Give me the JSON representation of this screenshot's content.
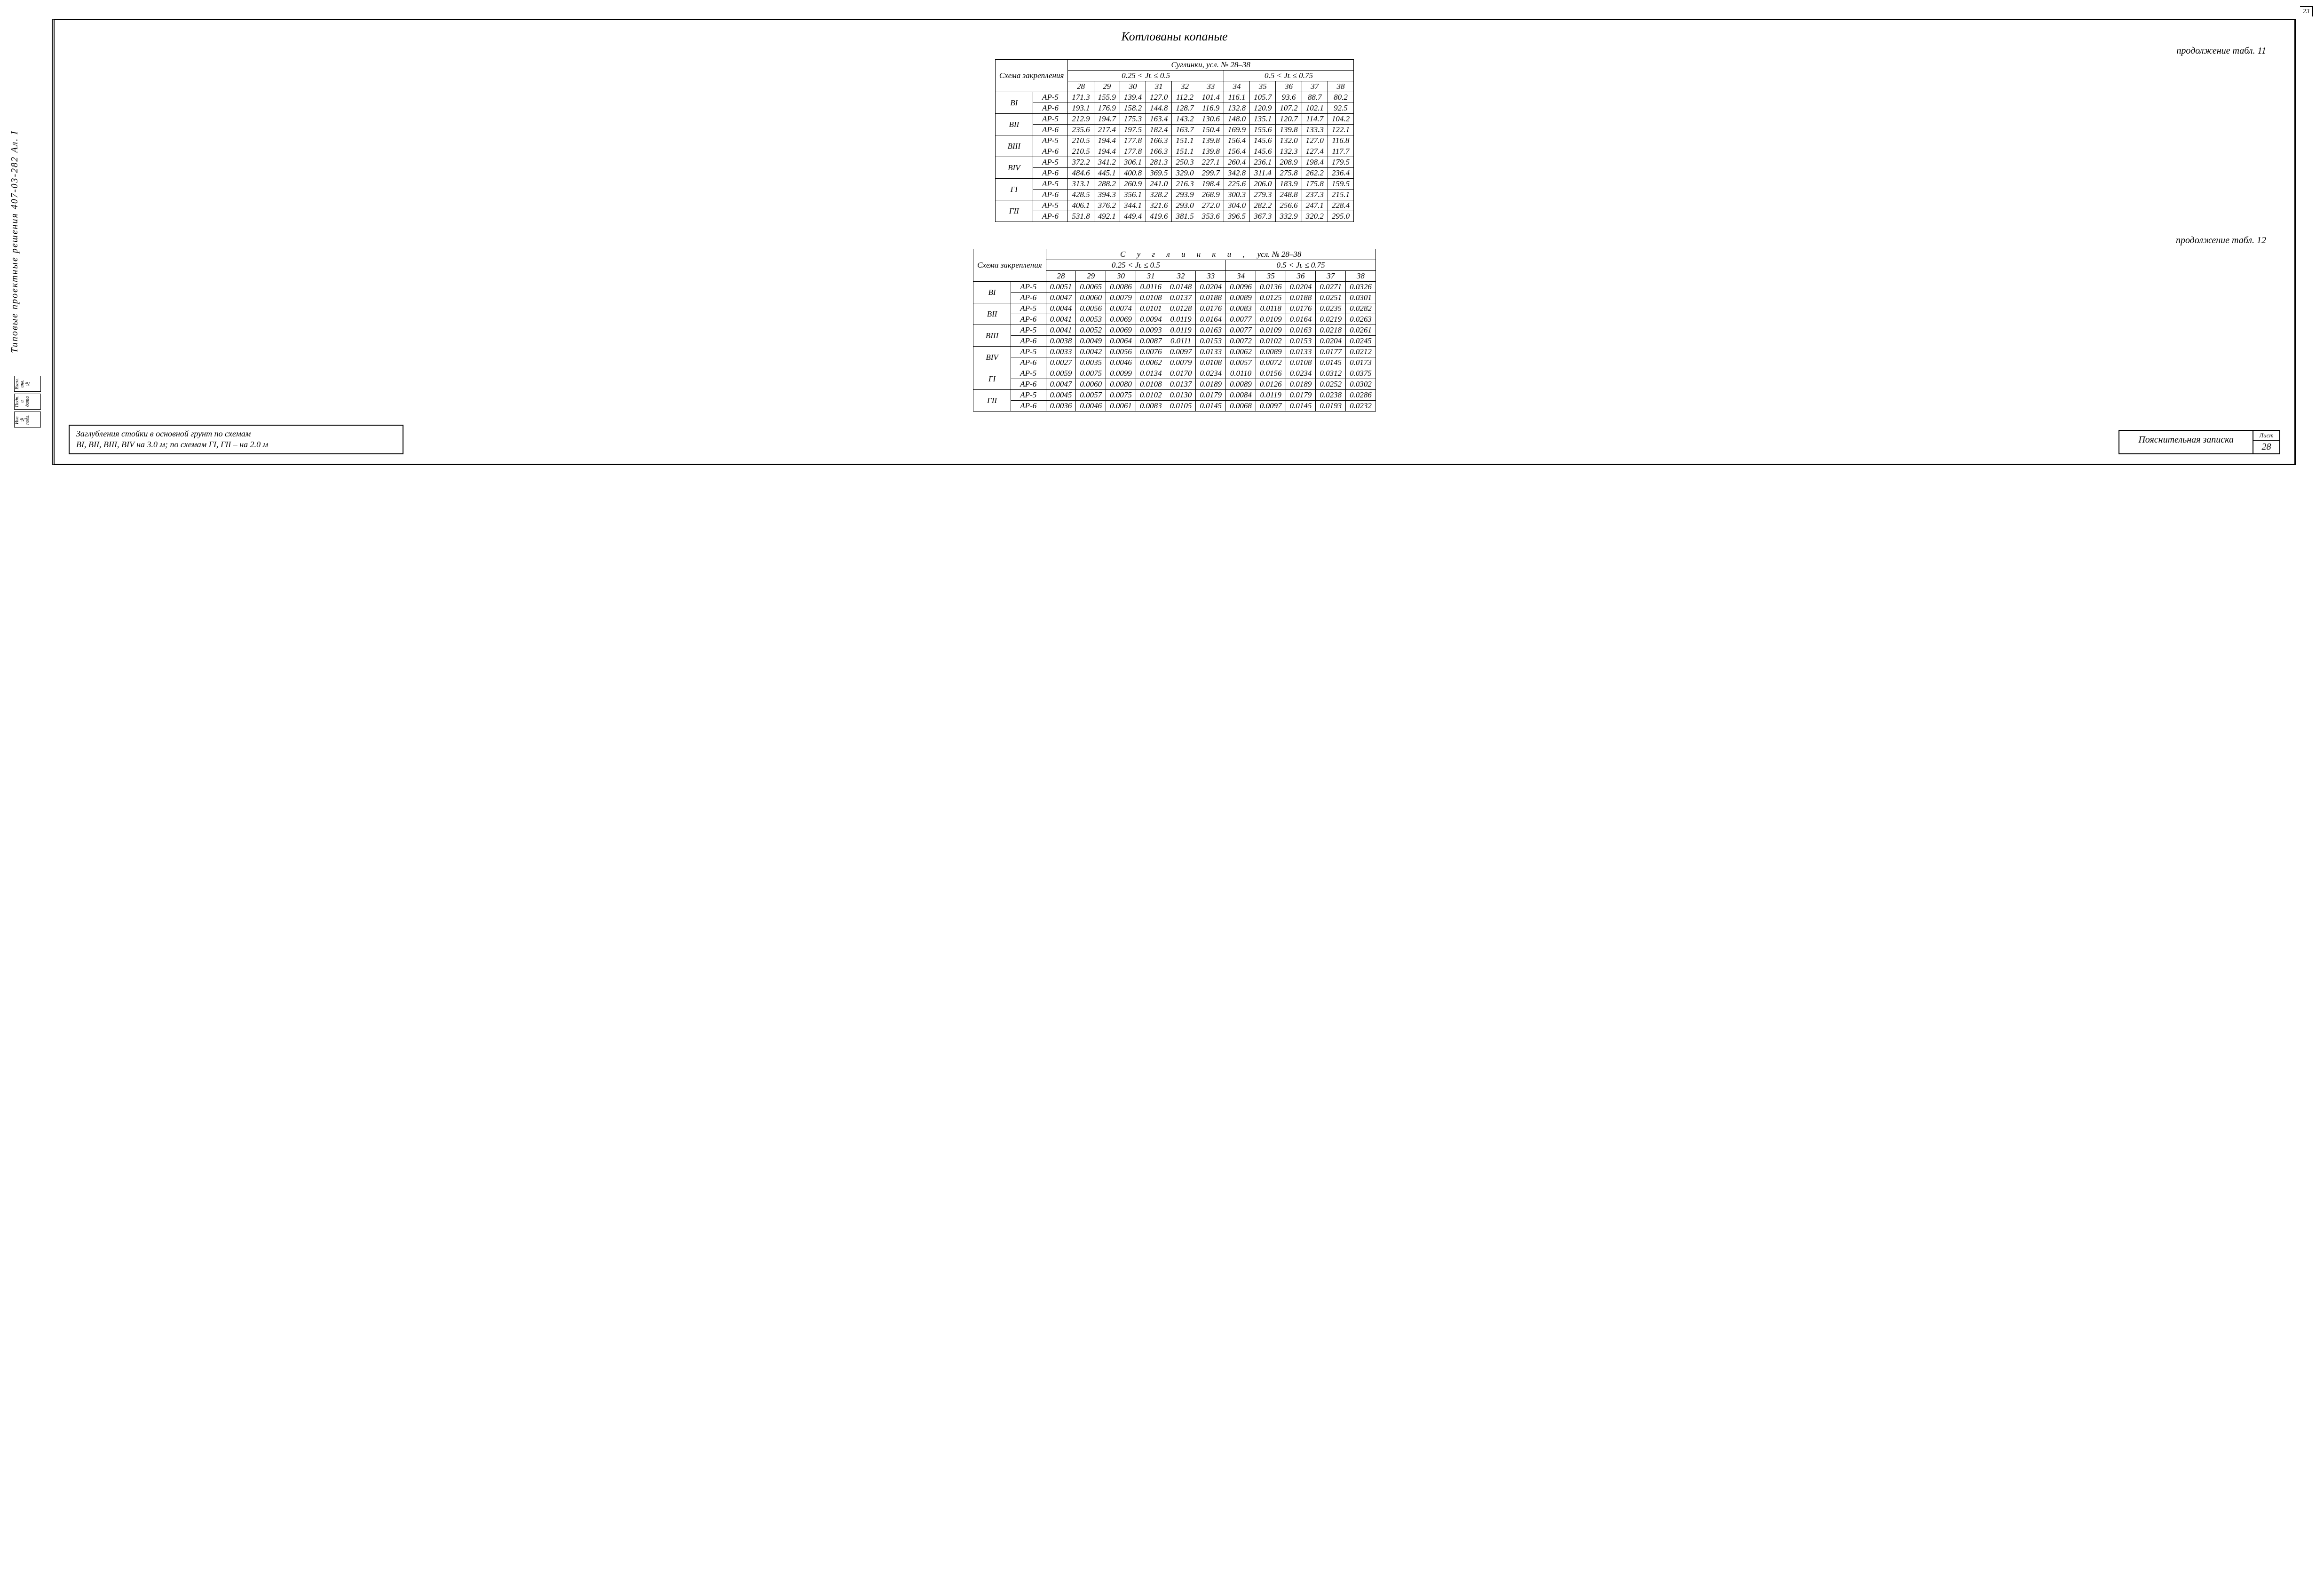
{
  "side_text": "Типовые проектные решения 407-03-282 Ал. I",
  "side_box1": "Взам. инв. №",
  "side_box2": "Подп. и дата",
  "side_box3": "Инв. № подл.",
  "corner": "23",
  "title": "Котлованы копаные",
  "cont11": "продолжение табл. 11",
  "cont12": "продолжение табл. 12",
  "scheme_hdr": "Схема закрепления",
  "soil_hdr_11": "Суглинки,  усл. № 28–38",
  "soil_hdr_12_a": "С у г л и н к и ,",
  "soil_hdr_12_b": "усл. № 28–38",
  "range1": "0.25 < Jʟ ≤ 0.5",
  "range2": "0.5 < Jʟ ≤ 0.75",
  "cols": [
    "28",
    "29",
    "30",
    "31",
    "32",
    "33",
    "34",
    "35",
    "36",
    "37",
    "38"
  ],
  "schemes": [
    "ВI",
    "ВII",
    "ВIII",
    "ВIV",
    "ГI",
    "ГII"
  ],
  "ar": [
    "АР-5",
    "АР-6"
  ],
  "t11": [
    [
      "171.3",
      "155.9",
      "139.4",
      "127.0",
      "112.2",
      "101.4",
      "116.1",
      "105.7",
      "93.6",
      "88.7",
      "80.2"
    ],
    [
      "193.1",
      "176.9",
      "158.2",
      "144.8",
      "128.7",
      "116.9",
      "132.8",
      "120.9",
      "107.2",
      "102.1",
      "92.5"
    ],
    [
      "212.9",
      "194.7",
      "175.3",
      "163.4",
      "143.2",
      "130.6",
      "148.0",
      "135.1",
      "120.7",
      "114.7",
      "104.2"
    ],
    [
      "235.6",
      "217.4",
      "197.5",
      "182.4",
      "163.7",
      "150.4",
      "169.9",
      "155.6",
      "139.8",
      "133.3",
      "122.1"
    ],
    [
      "210.5",
      "194.4",
      "177.8",
      "166.3",
      "151.1",
      "139.8",
      "156.4",
      "145.6",
      "132.0",
      "127.0",
      "116.8"
    ],
    [
      "210.5",
      "194.4",
      "177.8",
      "166.3",
      "151.1",
      "139.8",
      "156.4",
      "145.6",
      "132.3",
      "127.4",
      "117.7"
    ],
    [
      "372.2",
      "341.2",
      "306.1",
      "281.3",
      "250.3",
      "227.1",
      "260.4",
      "236.1",
      "208.9",
      "198.4",
      "179.5"
    ],
    [
      "484.6",
      "445.1",
      "400.8",
      "369.5",
      "329.0",
      "299.7",
      "342.8",
      "311.4",
      "275.8",
      "262.2",
      "236.4"
    ],
    [
      "313.1",
      "288.2",
      "260.9",
      "241.0",
      "216.3",
      "198.4",
      "225.6",
      "206.0",
      "183.9",
      "175.8",
      "159.5"
    ],
    [
      "428.5",
      "394.3",
      "356.1",
      "328.2",
      "293.9",
      "268.9",
      "300.3",
      "279.3",
      "248.8",
      "237.3",
      "215.1"
    ],
    [
      "406.1",
      "376.2",
      "344.1",
      "321.6",
      "293.0",
      "272.0",
      "304.0",
      "282.2",
      "256.6",
      "247.1",
      "228.4"
    ],
    [
      "531.8",
      "492.1",
      "449.4",
      "419.6",
      "381.5",
      "353.6",
      "396.5",
      "367.3",
      "332.9",
      "320.2",
      "295.0"
    ]
  ],
  "t12": [
    [
      "0.0051",
      "0.0065",
      "0.0086",
      "0.0116",
      "0.0148",
      "0.0204",
      "0.0096",
      "0.0136",
      "0.0204",
      "0.0271",
      "0.0326"
    ],
    [
      "0.0047",
      "0.0060",
      "0.0079",
      "0.0108",
      "0.0137",
      "0.0188",
      "0.0089",
      "0.0125",
      "0.0188",
      "0.0251",
      "0.0301"
    ],
    [
      "0.0044",
      "0.0056",
      "0.0074",
      "0.0101",
      "0.0128",
      "0.0176",
      "0.0083",
      "0.0118",
      "0.0176",
      "0.0235",
      "0.0282"
    ],
    [
      "0.0041",
      "0.0053",
      "0.0069",
      "0.0094",
      "0.0119",
      "0.0164",
      "0.0077",
      "0.0109",
      "0.0164",
      "0.0219",
      "0.0263"
    ],
    [
      "0.0041",
      "0.0052",
      "0.0069",
      "0.0093",
      "0.0119",
      "0.0163",
      "0.0077",
      "0.0109",
      "0.0163",
      "0.0218",
      "0.0261"
    ],
    [
      "0.0038",
      "0.0049",
      "0.0064",
      "0.0087",
      "0.0111",
      "0.0153",
      "0.0072",
      "0.0102",
      "0.0153",
      "0.0204",
      "0.0245"
    ],
    [
      "0.0033",
      "0.0042",
      "0.0056",
      "0.0076",
      "0.0097",
      "0.0133",
      "0.0062",
      "0.0089",
      "0.0133",
      "0.0177",
      "0.0212"
    ],
    [
      "0.0027",
      "0.0035",
      "0.0046",
      "0.0062",
      "0.0079",
      "0.0108",
      "0.0057",
      "0.0072",
      "0.0108",
      "0.0145",
      "0.0173"
    ],
    [
      "0.0059",
      "0.0075",
      "0.0099",
      "0.0134",
      "0.0170",
      "0.0234",
      "0.0110",
      "0.0156",
      "0.0234",
      "0.0312",
      "0.0375"
    ],
    [
      "0.0047",
      "0.0060",
      "0.0080",
      "0.0108",
      "0.0137",
      "0.0189",
      "0.0089",
      "0.0126",
      "0.0189",
      "0.0252",
      "0.0302"
    ],
    [
      "0.0045",
      "0.0057",
      "0.0075",
      "0.0102",
      "0.0130",
      "0.0179",
      "0.0084",
      "0.0119",
      "0.0179",
      "0.0238",
      "0.0286"
    ],
    [
      "0.0036",
      "0.0046",
      "0.0061",
      "0.0083",
      "0.0105",
      "0.0145",
      "0.0068",
      "0.0097",
      "0.0145",
      "0.0193",
      "0.0232"
    ]
  ],
  "note_l1": "Заглубления стойки в основной грунт по схемам",
  "note_l2": "ВI, ВII, ВIII, ВIV на 3.0 м;  по схемам ГI, ГII – на 2.0 м",
  "tb_title": "Пояснительная записка",
  "sheet_lbl": "Лист",
  "sheet_num": "28"
}
